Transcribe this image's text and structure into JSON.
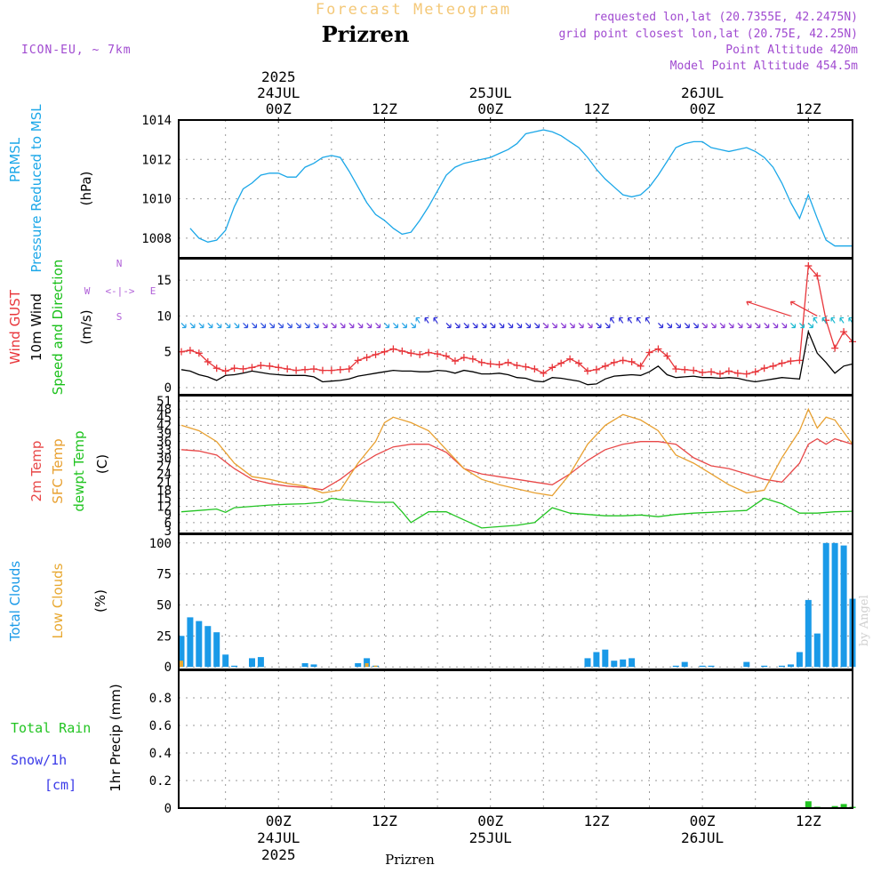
{
  "header": {
    "super_title": "Forecast Meteogram",
    "title": "Prizren",
    "model": "ICON-EU, ~ 7km",
    "info_lines": [
      "requested lon,lat (20.7355E, 42.2475N)",
      "grid point closest lon,lat (20.75E, 42.25N)",
      "Point Altitude 420m",
      "Model Point Altitude 454.5m"
    ],
    "footer_location": "Prizren",
    "watermark": "by Angel",
    "compass": {
      "n": "N",
      "s": "S",
      "e": "E",
      "w": "W",
      "rose": "<-|->"
    }
  },
  "time_axis": {
    "top": [
      {
        "hour": 0,
        "lines": [
          "2025",
          "24JUL",
          "00Z"
        ]
      },
      {
        "hour": 12,
        "lines": [
          "12Z"
        ]
      },
      {
        "hour": 24,
        "lines": [
          "25JUL",
          "00Z"
        ]
      },
      {
        "hour": 36,
        "lines": [
          "12Z"
        ]
      },
      {
        "hour": 48,
        "lines": [
          "26JUL",
          "00Z"
        ]
      },
      {
        "hour": 60,
        "lines": [
          "12Z"
        ]
      }
    ],
    "bottom": [
      {
        "hour": 0,
        "lines": [
          "00Z",
          "24JUL",
          "2025"
        ]
      },
      {
        "hour": 12,
        "lines": [
          "12Z"
        ]
      },
      {
        "hour": 24,
        "lines": [
          "00Z",
          "25JUL"
        ]
      },
      {
        "hour": 36,
        "lines": [
          "12Z"
        ]
      },
      {
        "hour": 48,
        "lines": [
          "00Z",
          "26JUL"
        ]
      },
      {
        "hour": 60,
        "lines": [
          "12Z"
        ]
      }
    ],
    "range_hours": [
      -11.3,
      65
    ]
  },
  "colors": {
    "pressure": "#1ba7e8",
    "gust": "#e8353a",
    "wind": "#000000",
    "wind_label": "#19c019",
    "temp2m": "#e84848",
    "sfc": "#e8a030",
    "dewpt": "#22c422",
    "total_clouds": "#1a9ae8",
    "low_clouds": "#e8a830",
    "rain": "#22c422",
    "snow": "#3a3ae8",
    "header": "#a04ad0",
    "super_title": "#f4c878"
  },
  "chart_data": [
    {
      "type": "line",
      "panel": "pressure",
      "labels": [
        {
          "text": "PRMSL",
          "color": "#1ba7e8"
        },
        {
          "text": "Pressure Reduced to MSL",
          "color": "#1ba7e8"
        },
        {
          "text": "(hPa)",
          "color": "#000000"
        }
      ],
      "ylim": [
        1007,
        1014
      ],
      "yticks": [
        1008,
        1010,
        1012,
        1014
      ],
      "series": [
        {
          "name": "PRMSL",
          "color": "#1ba7e8",
          "x": [
            -10,
            -9,
            -8,
            -7,
            -6,
            -5,
            -4,
            -3,
            -2,
            -1,
            0,
            1,
            2,
            3,
            4,
            5,
            6,
            7,
            8,
            9,
            10,
            11,
            12,
            13,
            14,
            15,
            16,
            17,
            18,
            19,
            20,
            21,
            22,
            23,
            24,
            25,
            26,
            27,
            28,
            29,
            30,
            31,
            32,
            33,
            34,
            35,
            36,
            37,
            38,
            39,
            40,
            41,
            42,
            43,
            44,
            45,
            46,
            47,
            48,
            49,
            50,
            51,
            52,
            53,
            54,
            55,
            56,
            57,
            58,
            59,
            60,
            61,
            62,
            63,
            64,
            65
          ],
          "y": [
            1008.5,
            1008.0,
            1007.8,
            1007.9,
            1008.4,
            1009.6,
            1010.5,
            1010.8,
            1011.2,
            1011.3,
            1011.3,
            1011.1,
            1011.1,
            1011.6,
            1011.8,
            1012.1,
            1012.2,
            1012.1,
            1011.4,
            1010.6,
            1009.8,
            1009.2,
            1008.9,
            1008.5,
            1008.2,
            1008.3,
            1008.9,
            1009.6,
            1010.4,
            1011.2,
            1011.6,
            1011.8,
            1011.9,
            1012.0,
            1012.1,
            1012.3,
            1012.5,
            1012.8,
            1013.3,
            1013.4,
            1013.5,
            1013.4,
            1013.2,
            1012.9,
            1012.6,
            1012.1,
            1011.5,
            1011.0,
            1010.6,
            1010.2,
            1010.1,
            1010.2,
            1010.6,
            1011.2,
            1011.9,
            1012.6,
            1012.8,
            1012.9,
            1012.9,
            1012.6,
            1012.5,
            1012.4,
            1012.5,
            1012.6,
            1012.4,
            1012.1,
            1011.6,
            1010.8,
            1009.8,
            1009.0,
            1010.2,
            1009.0,
            1007.9,
            1007.6,
            1007.6,
            1007.6
          ]
        }
      ]
    },
    {
      "type": "line",
      "panel": "wind",
      "labels": [
        {
          "text": "Wind GUST",
          "color": "#e8353a"
        },
        {
          "text": "10m Wind",
          "color": "#000000"
        },
        {
          "text": "Speed and Direction",
          "color": "#19c019"
        },
        {
          "text": "(m/s)",
          "color": "#000000"
        }
      ],
      "ylim": [
        -1,
        18
      ],
      "yticks": [
        0,
        5,
        10,
        15
      ],
      "series": [
        {
          "name": "Wind GUST",
          "color": "#e8353a",
          "x": [
            -11,
            -10,
            -9,
            -8,
            -7,
            -6,
            -5,
            -4,
            -3,
            -2,
            -1,
            0,
            1,
            2,
            3,
            4,
            5,
            6,
            7,
            8,
            9,
            10,
            11,
            12,
            13,
            14,
            15,
            16,
            17,
            18,
            19,
            20,
            21,
            22,
            23,
            24,
            25,
            26,
            27,
            28,
            29,
            30,
            31,
            32,
            33,
            34,
            35,
            36,
            37,
            38,
            39,
            40,
            41,
            42,
            43,
            44,
            45,
            46,
            47,
            48,
            49,
            50,
            51,
            52,
            53,
            54,
            55,
            56,
            57,
            58,
            59,
            60,
            61,
            62,
            63,
            64,
            65
          ],
          "y": [
            5,
            5.2,
            4.8,
            3.6,
            2.7,
            2.3,
            2.7,
            2.6,
            2.8,
            3.1,
            3.0,
            2.8,
            2.6,
            2.4,
            2.5,
            2.6,
            2.4,
            2.4,
            2.5,
            2.6,
            3.8,
            4.2,
            4.6,
            5.0,
            5.4,
            5.1,
            4.8,
            4.6,
            4.9,
            4.7,
            4.4,
            3.7,
            4.2,
            4.0,
            3.5,
            3.3,
            3.2,
            3.5,
            3.1,
            2.9,
            2.6,
            2.0,
            2.8,
            3.4,
            4.0,
            3.4,
            2.3,
            2.5,
            3.0,
            3.5,
            3.8,
            3.6,
            3.0,
            4.9,
            5.4,
            4.4,
            2.6,
            2.5,
            2.4,
            2.1,
            2.2,
            1.9,
            2.3,
            2.0,
            1.9,
            2.2,
            2.7,
            3.0,
            3.4,
            3.7,
            3.8,
            17.0,
            15.6,
            9.4,
            5.5,
            7.8,
            6.4
          ]
        },
        {
          "name": "10m Wind",
          "color": "#000000",
          "x": [
            -11,
            -10,
            -9,
            -8,
            -7,
            -6,
            -5,
            -4,
            -3,
            -2,
            -1,
            0,
            1,
            2,
            3,
            4,
            5,
            6,
            7,
            8,
            9,
            10,
            11,
            12,
            13,
            14,
            15,
            16,
            17,
            18,
            19,
            20,
            21,
            22,
            23,
            24,
            25,
            26,
            27,
            28,
            29,
            30,
            31,
            32,
            33,
            34,
            35,
            36,
            37,
            38,
            39,
            40,
            41,
            42,
            43,
            44,
            45,
            46,
            47,
            48,
            49,
            50,
            51,
            52,
            53,
            54,
            55,
            56,
            57,
            58,
            59,
            60,
            61,
            62,
            63,
            64,
            65
          ],
          "y": [
            2.5,
            2.3,
            1.8,
            1.5,
            1.0,
            1.7,
            1.8,
            2.0,
            2.3,
            2.1,
            1.9,
            1.8,
            1.7,
            1.7,
            1.7,
            1.5,
            0.8,
            0.9,
            1.0,
            1.2,
            1.6,
            1.8,
            2.0,
            2.2,
            2.4,
            2.3,
            2.3,
            2.2,
            2.2,
            2.4,
            2.3,
            2.0,
            2.4,
            2.2,
            1.9,
            1.9,
            2.0,
            1.8,
            1.4,
            1.3,
            0.9,
            0.8,
            1.4,
            1.3,
            1.1,
            0.9,
            0.4,
            0.5,
            1.2,
            1.6,
            1.7,
            1.8,
            1.7,
            2.2,
            3.0,
            1.8,
            1.4,
            1.5,
            1.6,
            1.4,
            1.4,
            1.3,
            1.4,
            1.3,
            1.0,
            0.8,
            1.0,
            1.2,
            1.4,
            1.3,
            1.2,
            7.8,
            4.8,
            3.5,
            2.0,
            3.0,
            3.3
          ]
        }
      ],
      "barb_level": 9
    },
    {
      "type": "line",
      "panel": "temperature",
      "labels": [
        {
          "text": "2m Temp",
          "color": "#e84848"
        },
        {
          "text": "SFC Temp",
          "color": "#e8a030"
        },
        {
          "text": "dewpt Temp",
          "color": "#22c422"
        },
        {
          "text": "(C)",
          "color": "#000000"
        }
      ],
      "ylim": [
        2,
        53
      ],
      "yticks": [
        3,
        6,
        9,
        12,
        15,
        18,
        21,
        24,
        27,
        30,
        33,
        36,
        39,
        42,
        45,
        48,
        51
      ],
      "series": [
        {
          "name": "2m Temp",
          "color": "#e84848",
          "x": [
            -11,
            -9,
            -7,
            -5,
            -3,
            -1,
            1,
            3,
            5,
            7,
            9,
            11,
            13,
            15,
            17,
            19,
            21,
            23,
            25,
            27,
            29,
            31,
            33,
            35,
            37,
            39,
            41,
            43,
            45,
            47,
            49,
            51,
            53,
            55,
            57,
            59,
            60,
            61,
            62,
            63,
            65
          ],
          "y": [
            33,
            32.5,
            31,
            26,
            22,
            20.5,
            19.5,
            19,
            18.2,
            22,
            27,
            31,
            34,
            35,
            35,
            32,
            26,
            24,
            23,
            22,
            21,
            20,
            24,
            29,
            33,
            35,
            36,
            36,
            35,
            30,
            27,
            26,
            24,
            22,
            21,
            28,
            35,
            37,
            35,
            37,
            35
          ]
        },
        {
          "name": "SFC Temp",
          "color": "#e8a030",
          "x": [
            -11,
            -9,
            -7,
            -5,
            -3,
            -1,
            1,
            3,
            5,
            7,
            9,
            11,
            12,
            13,
            15,
            17,
            19,
            21,
            23,
            25,
            27,
            29,
            31,
            33,
            35,
            37,
            39,
            41,
            43,
            45,
            47,
            49,
            51,
            53,
            55,
            57,
            59,
            60,
            61,
            62,
            63,
            65
          ],
          "y": [
            42,
            40,
            36,
            28,
            23,
            22,
            20.5,
            19.5,
            17,
            18,
            28,
            36,
            43,
            45,
            43,
            40,
            33,
            26,
            22,
            20,
            18.5,
            17,
            16,
            24,
            35,
            42,
            46,
            44,
            40,
            31,
            28,
            24,
            20,
            17,
            18,
            30,
            40,
            48,
            41,
            45,
            44,
            35
          ]
        },
        {
          "name": "dewpt Temp",
          "color": "#22c422",
          "x": [
            -11,
            -9,
            -7,
            -6,
            -5,
            -3,
            -1,
            1,
            3,
            5,
            6,
            7,
            9,
            11,
            13,
            14,
            15,
            17,
            19,
            21,
            23,
            25,
            27,
            29,
            31,
            33,
            35,
            37,
            39,
            41,
            43,
            45,
            47,
            49,
            51,
            53,
            55,
            57,
            59,
            61,
            63,
            65
          ],
          "y": [
            10,
            10.5,
            11,
            9.8,
            11.5,
            12,
            12.5,
            12.8,
            13,
            13.5,
            15,
            14.5,
            14,
            13.5,
            13.5,
            10,
            6,
            10,
            10,
            7,
            4,
            4.5,
            5,
            6,
            11.5,
            9.5,
            9,
            8.5,
            8.5,
            8.8,
            8.2,
            9,
            9.5,
            9.8,
            10.2,
            10.5,
            15,
            13,
            9.5,
            9.5,
            10,
            10.2
          ]
        }
      ]
    },
    {
      "type": "bar",
      "panel": "clouds",
      "labels": [
        {
          "text": "Total Clouds",
          "color": "#1a9ae8"
        },
        {
          "text": "Low Clouds",
          "color": "#e8a830"
        },
        {
          "text": "(%)",
          "color": "#000000"
        }
      ],
      "ylim": [
        -2,
        107
      ],
      "yticks": [
        0,
        25,
        50,
        75,
        100
      ],
      "series": [
        {
          "name": "Total Clouds",
          "color": "#1a9ae8",
          "x": [
            -11,
            -10,
            -9,
            -8,
            -7,
            -6,
            -5,
            -3,
            -2,
            3,
            4,
            9,
            10,
            11,
            35,
            36,
            37,
            38,
            39,
            40,
            45,
            46,
            48,
            49,
            53,
            55,
            57,
            58,
            59,
            60,
            61,
            62,
            63,
            64,
            65
          ],
          "y": [
            25,
            40,
            37,
            33,
            28,
            10,
            1,
            7,
            8,
            3,
            2,
            3,
            7,
            1,
            7,
            12,
            14,
            5,
            6,
            7,
            1,
            4,
            1,
            1,
            4,
            1,
            1,
            2,
            12,
            54,
            27,
            100,
            100,
            98,
            55
          ]
        },
        {
          "name": "Low Clouds",
          "color": "#e8a830",
          "x": [
            -11,
            10,
            11
          ],
          "y": [
            5,
            3,
            1
          ]
        }
      ]
    },
    {
      "type": "bar",
      "panel": "precip",
      "labels": [
        {
          "text": "1hr Precip (mm)",
          "color": "#000000"
        }
      ],
      "legend": [
        {
          "text": "Total  Rain",
          "color": "#22c422"
        },
        {
          "text": "Snow/1h",
          "color": "#3a3ae8"
        },
        {
          "text": "[cm]",
          "color": "#3a3ae8"
        }
      ],
      "ylim": [
        0,
        1
      ],
      "yticks": [
        0,
        0.2,
        0.4,
        0.6,
        0.8
      ],
      "series": [
        {
          "name": "Total Rain",
          "color": "#22c422",
          "x": [
            60,
            61,
            63,
            64,
            65
          ],
          "y": [
            0.05,
            0.01,
            0.015,
            0.03,
            0.01
          ]
        }
      ]
    }
  ]
}
